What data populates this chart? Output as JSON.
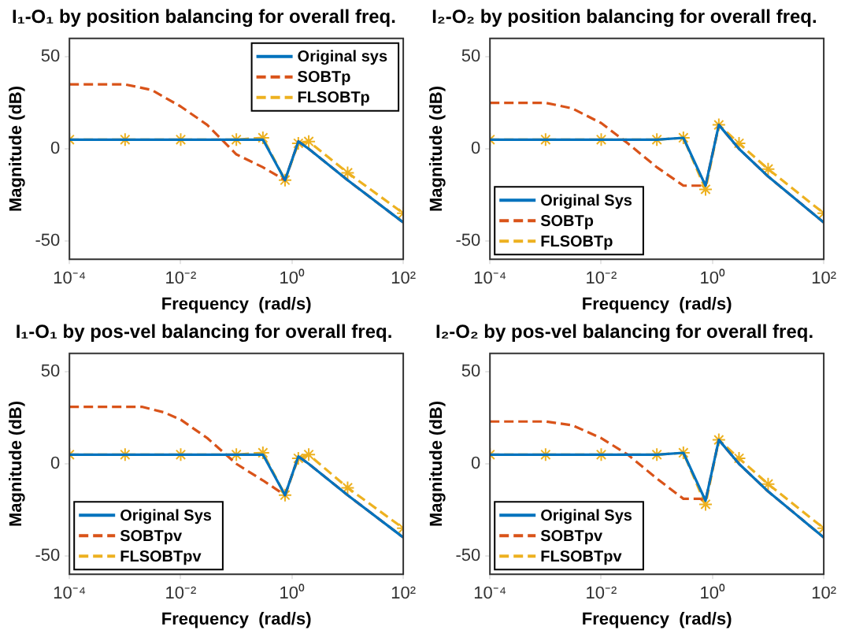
{
  "chart_data": [
    {
      "type": "line",
      "title": "I₁-O₁ by position balancing for overall freq.",
      "xlabel": "Frequency  (rad/s)",
      "ylabel": "Magnitude (dB)",
      "log": "x",
      "xlim": [
        0.0001,
        100
      ],
      "xticks": [
        {
          "value": 0.0001,
          "label": "10⁻⁴"
        },
        {
          "value": 0.01,
          "label": "10⁻²"
        },
        {
          "value": 1,
          "label": "10⁰"
        },
        {
          "value": 100,
          "label": "10²"
        }
      ],
      "ylim": [
        -60,
        60
      ],
      "yticks": [
        -50,
        0,
        50
      ],
      "grid": false,
      "legend": "top right",
      "series": [
        {
          "name": "Original sys",
          "color": "#0072bd",
          "line_style": "solid",
          "marker": "none",
          "x": [
            0.0001,
            0.01,
            0.1,
            0.3,
            0.75,
            1.3,
            2,
            10,
            100
          ],
          "values": [
            5,
            5,
            5,
            5,
            -17,
            4,
            0,
            -17,
            -40
          ]
        },
        {
          "name": "SOBTp",
          "color": "#d95319",
          "line_style": "dashed",
          "marker": "none",
          "x": [
            0.0001,
            0.001,
            0.003,
            0.01,
            0.03,
            0.1,
            0.3,
            0.75,
            1.3,
            2,
            10,
            100
          ],
          "values": [
            35,
            35,
            32,
            23,
            13,
            -3,
            -10,
            -17,
            4,
            0,
            -17,
            -40
          ]
        },
        {
          "name": "FLSOBTp",
          "color": "#edb120",
          "line_style": "dashed",
          "marker": "cross",
          "x": [
            0.0001,
            0.001,
            0.01,
            0.1,
            0.3,
            0.75,
            1.3,
            2,
            10,
            100
          ],
          "values": [
            5,
            5,
            5,
            5,
            6,
            -17,
            3,
            4,
            -13,
            -35
          ]
        }
      ]
    },
    {
      "type": "line",
      "title": "I₂-O₂ by position balancing for overall freq.",
      "xlabel": "Frequency  (rad/s)",
      "ylabel": "Magnitude (dB)",
      "log": "x",
      "xlim": [
        0.0001,
        100
      ],
      "xticks": [
        {
          "value": 0.0001,
          "label": "10⁻⁴"
        },
        {
          "value": 0.01,
          "label": "10⁻²"
        },
        {
          "value": 1,
          "label": "10⁰"
        },
        {
          "value": 100,
          "label": "10²"
        }
      ],
      "ylim": [
        -60,
        60
      ],
      "yticks": [
        -50,
        0,
        50
      ],
      "grid": false,
      "legend": "bottom left",
      "series": [
        {
          "name": "Original Sys",
          "color": "#0072bd",
          "line_style": "solid",
          "marker": "none",
          "x": [
            0.0001,
            0.01,
            0.1,
            0.3,
            0.75,
            1.3,
            3,
            10,
            100
          ],
          "values": [
            5,
            5,
            5,
            6,
            -20,
            13,
            0,
            -15,
            -40
          ]
        },
        {
          "name": "SOBTp",
          "color": "#d95319",
          "line_style": "dashed",
          "marker": "none",
          "x": [
            0.0001,
            0.001,
            0.003,
            0.01,
            0.03,
            0.1,
            0.3,
            0.6,
            0.75,
            1.3,
            3,
            10,
            100
          ],
          "values": [
            25,
            25,
            22,
            14,
            3,
            -10,
            -20,
            -20,
            -20,
            13,
            0,
            -15,
            -40
          ]
        },
        {
          "name": "FLSOBTp",
          "color": "#edb120",
          "line_style": "dashed",
          "marker": "cross",
          "x": [
            0.0001,
            0.001,
            0.01,
            0.1,
            0.3,
            0.75,
            1.3,
            3,
            10,
            100
          ],
          "values": [
            5,
            5,
            5,
            5,
            6,
            -22,
            13,
            3,
            -11,
            -35
          ]
        }
      ]
    },
    {
      "type": "line",
      "title": "I₁-O₁ by pos-vel balancing for overall freq.",
      "xlabel": "Frequency  (rad/s)",
      "ylabel": "Magnitude (dB)",
      "log": "x",
      "xlim": [
        0.0001,
        100
      ],
      "xticks": [
        {
          "value": 0.0001,
          "label": "10⁻⁴"
        },
        {
          "value": 0.01,
          "label": "10⁻²"
        },
        {
          "value": 1,
          "label": "10⁰"
        },
        {
          "value": 100,
          "label": "10²"
        }
      ],
      "ylim": [
        -60,
        60
      ],
      "yticks": [
        -50,
        0,
        50
      ],
      "grid": false,
      "legend": "bottom left",
      "series": [
        {
          "name": "Original Sys",
          "color": "#0072bd",
          "line_style": "solid",
          "marker": "none",
          "x": [
            0.0001,
            0.01,
            0.1,
            0.3,
            0.75,
            1.3,
            2,
            10,
            100
          ],
          "values": [
            5,
            5,
            5,
            5,
            -17,
            4,
            0,
            -17,
            -40
          ]
        },
        {
          "name": "SOBTpv",
          "color": "#d95319",
          "line_style": "dashed",
          "marker": "none",
          "x": [
            0.0001,
            0.002,
            0.005,
            0.01,
            0.03,
            0.1,
            0.3,
            0.75,
            1.3,
            2,
            10,
            100
          ],
          "values": [
            31,
            31,
            28,
            24,
            14,
            0,
            -9,
            -17,
            4,
            0,
            -17,
            -40
          ]
        },
        {
          "name": "FLSOBTpv",
          "color": "#edb120",
          "line_style": "dashed",
          "marker": "cross",
          "x": [
            0.0001,
            0.001,
            0.01,
            0.1,
            0.3,
            0.75,
            1.3,
            2,
            10,
            100
          ],
          "values": [
            5,
            5,
            5,
            5,
            6,
            -17,
            3,
            5,
            -13,
            -35
          ]
        }
      ]
    },
    {
      "type": "line",
      "title": "I₂-O₂ by pos-vel balancing for overall freq.",
      "xlabel": "Frequency  (rad/s)",
      "ylabel": "Magnitude (dB)",
      "log": "x",
      "xlim": [
        0.0001,
        100
      ],
      "xticks": [
        {
          "value": 0.0001,
          "label": "10⁻⁴"
        },
        {
          "value": 0.01,
          "label": "10⁻²"
        },
        {
          "value": 1,
          "label": "10⁰"
        },
        {
          "value": 100,
          "label": "10²"
        }
      ],
      "ylim": [
        -60,
        60
      ],
      "yticks": [
        -50,
        0,
        50
      ],
      "grid": false,
      "legend": "bottom left",
      "series": [
        {
          "name": "Original Sys",
          "color": "#0072bd",
          "line_style": "solid",
          "marker": "none",
          "x": [
            0.0001,
            0.01,
            0.1,
            0.3,
            0.75,
            1.3,
            3,
            10,
            100
          ],
          "values": [
            5,
            5,
            5,
            6,
            -20,
            13,
            0,
            -15,
            -40
          ]
        },
        {
          "name": "SOBTpv",
          "color": "#d95319",
          "line_style": "dashed",
          "marker": "none",
          "x": [
            0.0001,
            0.001,
            0.003,
            0.01,
            0.03,
            0.1,
            0.3,
            0.6,
            0.75,
            1.3,
            3,
            10,
            100
          ],
          "values": [
            23,
            23,
            21,
            14,
            5,
            -8,
            -19,
            -19,
            -20,
            13,
            0,
            -15,
            -40
          ]
        },
        {
          "name": "FLSOBTpv",
          "color": "#edb120",
          "line_style": "dashed",
          "marker": "cross",
          "x": [
            0.0001,
            0.001,
            0.01,
            0.1,
            0.3,
            0.75,
            1.3,
            3,
            10,
            100
          ],
          "values": [
            5,
            5,
            5,
            5,
            6,
            -22,
            13,
            3,
            -11,
            -35
          ]
        }
      ]
    }
  ]
}
